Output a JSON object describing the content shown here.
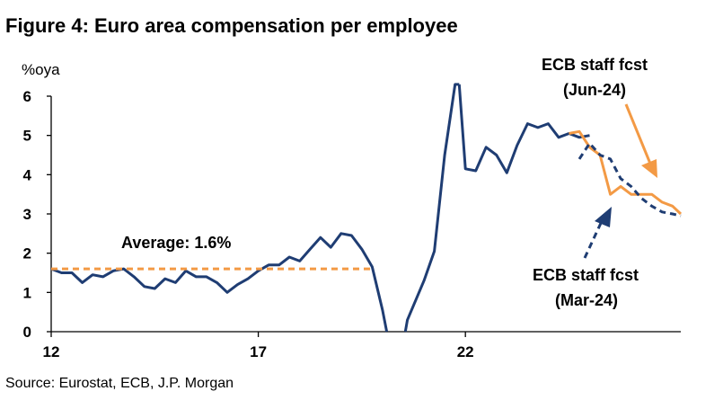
{
  "chart_data": {
    "type": "line",
    "title": "Figure 4: Euro area compensation per employee",
    "ylabel": "%oya",
    "ylim": [
      0,
      6
    ],
    "xlim": [
      12,
      27.2
    ],
    "yticks": [
      "0",
      "1",
      "2",
      "3",
      "4",
      "5",
      "6"
    ],
    "xticks": [
      {
        "x": 12,
        "label": "12"
      },
      {
        "x": 17,
        "label": "17"
      },
      {
        "x": 22,
        "label": "22"
      }
    ],
    "grid": false,
    "colors": {
      "actual": "#1f3d73",
      "forecast": "#f39a45"
    },
    "series": [
      {
        "name": "actual",
        "style": "solid",
        "color": "#1f3d73",
        "x": [
          12.0,
          12.25,
          12.5,
          12.75,
          13.0,
          13.25,
          13.5,
          13.75,
          14.0,
          14.25,
          14.5,
          14.75,
          15.0,
          15.25,
          15.5,
          15.75,
          16.0,
          16.25,
          16.5,
          16.75,
          17.0,
          17.25,
          17.5,
          17.75,
          18.0,
          18.25,
          18.5,
          18.75,
          19.0,
          19.25,
          19.5,
          19.75,
          20.0,
          20.1
        ],
        "y": [
          1.6,
          1.5,
          1.5,
          1.25,
          1.45,
          1.4,
          1.55,
          1.6,
          1.4,
          1.15,
          1.1,
          1.35,
          1.25,
          1.55,
          1.4,
          1.4,
          1.25,
          1.0,
          1.2,
          1.35,
          1.55,
          1.7,
          1.7,
          1.9,
          1.8,
          2.1,
          2.4,
          2.15,
          2.5,
          2.45,
          2.1,
          1.65,
          0.55,
          0.0
        ]
      },
      {
        "name": "actual-2020-21",
        "style": "solid",
        "color": "#1f3d73",
        "x": [
          20.55,
          20.6,
          21.0,
          21.25,
          21.5,
          21.75,
          21.85
        ],
        "y": [
          0.0,
          0.3,
          1.3,
          2.05,
          4.5,
          6.3,
          6.3
        ]
      },
      {
        "name": "actual-recent",
        "style": "solid",
        "color": "#1f3d73",
        "x": [
          21.85,
          22.0,
          22.25,
          22.5,
          22.75,
          23.0,
          23.25,
          23.5,
          23.75,
          24.0,
          24.25,
          24.5,
          24.75,
          25.0
        ],
        "y": [
          6.3,
          4.15,
          4.1,
          4.7,
          4.5,
          4.05,
          4.75,
          5.3,
          5.2,
          5.3,
          4.95,
          5.05,
          4.95,
          5.0
        ]
      },
      {
        "name": "ECB staff fcst (Jun-24)",
        "style": "solid",
        "color": "#f39a45",
        "x": [
          24.5,
          24.75,
          25.0,
          25.25,
          25.5,
          25.75,
          26.0,
          26.25,
          26.5,
          26.75,
          27.0,
          27.2
        ],
        "y": [
          5.05,
          5.1,
          4.7,
          4.5,
          3.5,
          3.7,
          3.5,
          3.5,
          3.5,
          3.3,
          3.2,
          3.0
        ]
      },
      {
        "name": "ECB staff fcst (Mar-24)",
        "style": "dashed",
        "color": "#1f3d73",
        "x": [
          24.75,
          25.0,
          25.25,
          25.5,
          25.75,
          26.0,
          26.25,
          26.5,
          26.75,
          27.0,
          27.2
        ],
        "y": [
          4.4,
          4.8,
          4.5,
          4.4,
          3.9,
          3.7,
          3.4,
          3.2,
          3.05,
          3.0,
          2.95
        ]
      },
      {
        "name": "Average",
        "style": "dashed",
        "color": "#f39a45",
        "x": [
          12.0,
          19.75
        ],
        "y": [
          1.6,
          1.6
        ]
      }
    ],
    "annotations": {
      "average": "Average: 1.6%",
      "jun_line1": "ECB staff fcst",
      "jun_line2": "(Jun-24)",
      "mar_line1": "ECB staff fcst",
      "mar_line2": "(Mar-24)"
    },
    "source": "Source: Eurostat, ECB, J.P. Morgan"
  }
}
